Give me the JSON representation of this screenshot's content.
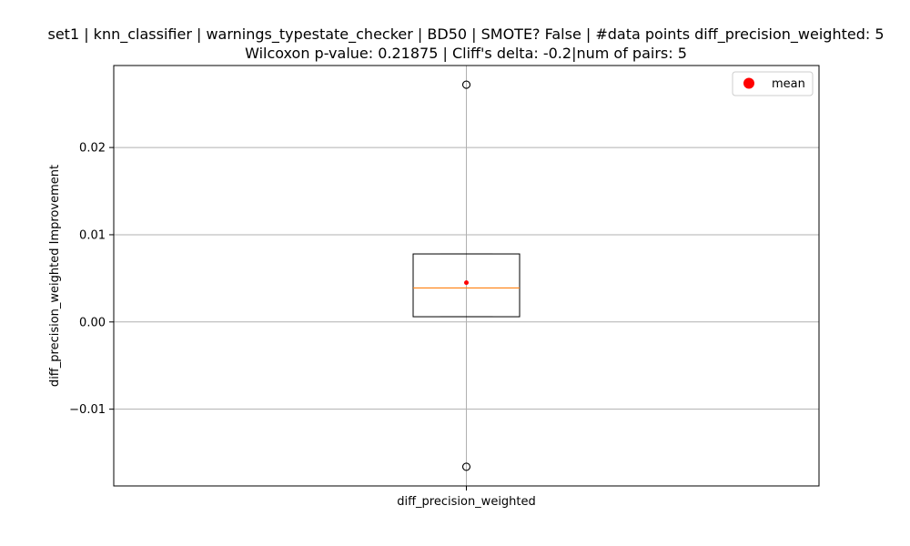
{
  "chart_data": {
    "type": "box",
    "title_line1": "set1 | knn_classifier | warnings_typestate_checker | BD50 | SMOTE? False | #data points diff_precision_weighted: 5",
    "title_line2": "Wilcoxon p-value: 0.21875 | Cliff's delta: -0.2|num of pairs: 5",
    "xlabel": "diff_precision_weighted",
    "ylabel": "diff_precision_weighted Improvement",
    "categories": [
      "diff_precision_weighted"
    ],
    "ylim": [
      -0.0188,
      0.0294
    ],
    "yticks": [
      {
        "value": -0.01,
        "label": "−0.01"
      },
      {
        "value": 0.0,
        "label": "0.00"
      },
      {
        "value": 0.01,
        "label": "0.01"
      },
      {
        "value": 0.02,
        "label": "0.02"
      }
    ],
    "box": {
      "whisker_low": 0.0006,
      "q1": 0.0006,
      "median": 0.0039,
      "q3": 0.0078,
      "whisker_high": 0.0078,
      "mean": 0.0045,
      "outliers": [
        0.0272,
        -0.0166
      ]
    },
    "grid": true,
    "legend": {
      "placement": "top-right",
      "label": "mean"
    },
    "colors": {
      "median": "#ff7f0e",
      "mean": "#ff0000",
      "grid": "#b0b0b0",
      "axes": "#000000"
    }
  }
}
